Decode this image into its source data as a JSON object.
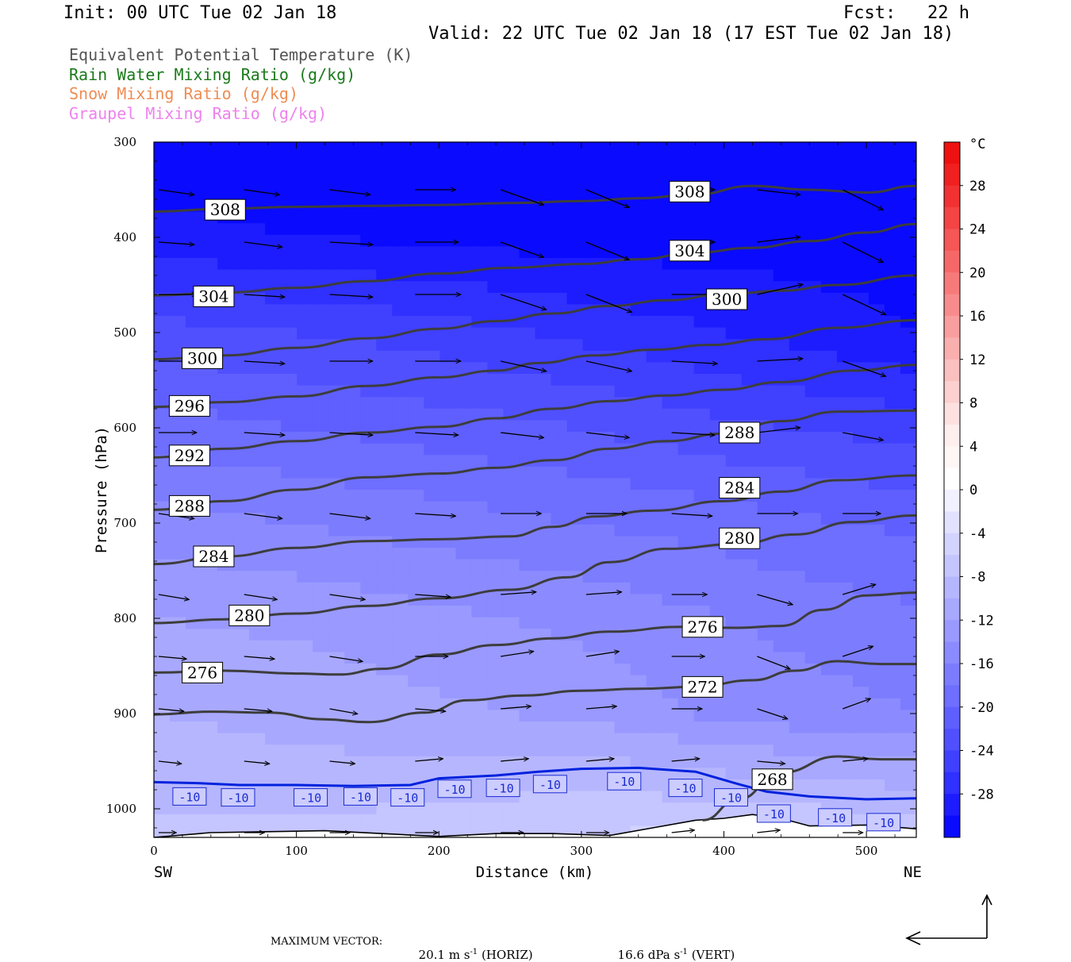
{
  "header": {
    "init": "Init: 00 UTC Tue 02 Jan 18",
    "fcst": "Fcst:   22 h",
    "valid": "Valid: 22 UTC Tue 02 Jan 18 (17 EST Tue 02 Jan 18)"
  },
  "legend": [
    {
      "label": "Equivalent Potential Temperature (K)",
      "color": "#555555"
    },
    {
      "label": "Rain Water Mixing Ratio (g/kg)",
      "color": "#1a7a1a"
    },
    {
      "label": "Snow Mixing Ratio (g/kg)",
      "color": "#ee8d55"
    },
    {
      "label": "Graupel Mixing Ratio (g/kg)",
      "color": "#ee82ee"
    }
  ],
  "footer": {
    "max_vector_label": "MAXIMUM VECTOR:",
    "horiz": "20.1 m s",
    "horiz_exp": "-1",
    "horiz_tag": "(HORIZ)",
    "vert": "16.6 dPa s",
    "vert_exp": "-1",
    "vert_tag": "(VERT)"
  },
  "chart_data": {
    "type": "cross-section",
    "xlabel": "Distance (km)",
    "ylabel": "Pressure (hPa)",
    "x_ticks": [
      0,
      100,
      200,
      300,
      400,
      500
    ],
    "xlim": [
      0,
      535
    ],
    "y_ticks": [
      300,
      400,
      500,
      600,
      700,
      800,
      900,
      1000
    ],
    "ylim": [
      300,
      1030
    ],
    "left_end_label": "SW",
    "right_end_label": "NE",
    "colorbar": {
      "unit": "°C",
      "tick_labels": [
        "28",
        "24",
        "20",
        "16",
        "12",
        "8",
        "4",
        "0",
        "-4",
        "-8",
        "-12",
        "-16",
        "-20",
        "-24",
        "-28"
      ],
      "bins": [
        {
          "lo": 30,
          "hi": 32,
          "color": "#ee1111"
        },
        {
          "lo": 28,
          "hi": 30,
          "color": "#f02020"
        },
        {
          "lo": 26,
          "hi": 28,
          "color": "#f23232"
        },
        {
          "lo": 24,
          "hi": 26,
          "color": "#f44444"
        },
        {
          "lo": 22,
          "hi": 24,
          "color": "#f55656"
        },
        {
          "lo": 20,
          "hi": 22,
          "color": "#f66868"
        },
        {
          "lo": 18,
          "hi": 20,
          "color": "#f77a7a"
        },
        {
          "lo": 16,
          "hi": 18,
          "color": "#f88c8c"
        },
        {
          "lo": 14,
          "hi": 16,
          "color": "#f99e9e"
        },
        {
          "lo": 12,
          "hi": 14,
          "color": "#faafaf"
        },
        {
          "lo": 10,
          "hi": 12,
          "color": "#fbc0c0"
        },
        {
          "lo": 8,
          "hi": 10,
          "color": "#fcd0d0"
        },
        {
          "lo": 6,
          "hi": 8,
          "color": "#fde0e0"
        },
        {
          "lo": 4,
          "hi": 6,
          "color": "#feeeee"
        },
        {
          "lo": 2,
          "hi": 4,
          "color": "#fff6f6"
        },
        {
          "lo": 0,
          "hi": 2,
          "color": "#ffffff"
        },
        {
          "lo": -2,
          "hi": 0,
          "color": "#f0f0ff"
        },
        {
          "lo": -4,
          "hi": -2,
          "color": "#e2e2ff"
        },
        {
          "lo": -6,
          "hi": -4,
          "color": "#d3d3ff"
        },
        {
          "lo": -8,
          "hi": -6,
          "color": "#c5c5ff"
        },
        {
          "lo": -10,
          "hi": -8,
          "color": "#b6b6ff"
        },
        {
          "lo": -12,
          "hi": -10,
          "color": "#a8a8ff"
        },
        {
          "lo": -14,
          "hi": -12,
          "color": "#9999ff"
        },
        {
          "lo": -16,
          "hi": -14,
          "color": "#8b8bff"
        },
        {
          "lo": -18,
          "hi": -16,
          "color": "#7c7cff"
        },
        {
          "lo": -20,
          "hi": -18,
          "color": "#6e6eff"
        },
        {
          "lo": -22,
          "hi": -20,
          "color": "#5f5fff"
        },
        {
          "lo": -24,
          "hi": -22,
          "color": "#5050ff"
        },
        {
          "lo": -26,
          "hi": -24,
          "color": "#4040ff"
        },
        {
          "lo": -28,
          "hi": -26,
          "color": "#3030ff"
        },
        {
          "lo": -30,
          "hi": -28,
          "color": "#1c1cff"
        },
        {
          "lo": -32,
          "hi": -30,
          "color": "#0a0aff"
        }
      ]
    },
    "temperature_field": {
      "x": [
        0,
        100,
        200,
        300,
        400,
        535
      ],
      "levels": [
        {
          "p": 300,
          "t": [
            -31,
            -31,
            -31,
            -31,
            -31,
            -31
          ]
        },
        {
          "p": 400,
          "t": [
            -29.5,
            -30,
            -30.5,
            -31,
            -31,
            -31
          ]
        },
        {
          "p": 500,
          "t": [
            -23,
            -24,
            -25,
            -26.5,
            -28,
            -30
          ]
        },
        {
          "p": 600,
          "t": [
            -19,
            -20,
            -21,
            -22,
            -23.5,
            -25
          ]
        },
        {
          "p": 700,
          "t": [
            -15,
            -16,
            -17,
            -18,
            -19,
            -20.5
          ]
        },
        {
          "p": 800,
          "t": [
            -12,
            -12.5,
            -13.5,
            -14.5,
            -16,
            -17.5
          ]
        },
        {
          "p": 900,
          "t": [
            -10,
            -10.5,
            -11.5,
            -12.5,
            -14.5,
            -16
          ]
        },
        {
          "p": 970,
          "t": [
            -9,
            -9.5,
            -9,
            -8.5,
            -9.5,
            -10.5
          ]
        },
        {
          "p": 1030,
          "t": [
            -7,
            -7,
            -6.5,
            -6,
            -5,
            -7
          ]
        }
      ]
    },
    "theta_e_contours": [
      {
        "value": 268,
        "x": [
          385,
          410,
          440,
          480,
          510,
          535
        ],
        "p": [
          1012,
          990,
          962,
          945,
          948,
          948
        ]
      },
      {
        "value": 272,
        "x": [
          0,
          40,
          80,
          120,
          150,
          190,
          220,
          260,
          300,
          340,
          380,
          420,
          450,
          480,
          510,
          535
        ],
        "p": [
          901,
          898,
          899,
          906,
          909,
          899,
          886,
          881,
          876,
          874,
          872,
          865,
          855,
          845,
          848,
          848
        ]
      },
      {
        "value": 276,
        "x": [
          0,
          50,
          100,
          130,
          160,
          200,
          240,
          280,
          320,
          370,
          410,
          440,
          470,
          500,
          535
        ],
        "p": [
          857,
          855,
          858,
          859,
          853,
          838,
          828,
          821,
          814,
          809,
          810,
          808,
          791,
          776,
          773
        ]
      },
      {
        "value": 280,
        "x": [
          0,
          50,
          100,
          150,
          200,
          250,
          290,
          320,
          360,
          410,
          450,
          490,
          535
        ],
        "p": [
          805,
          801,
          795,
          787,
          779,
          770,
          757,
          741,
          727,
          722,
          712,
          699,
          692
        ]
      },
      {
        "value": 284,
        "x": [
          0,
          50,
          100,
          150,
          200,
          250,
          280,
          310,
          350,
          400,
          440,
          480,
          535
        ],
        "p": [
          743,
          735,
          726,
          719,
          717,
          714,
          704,
          693,
          687,
          677,
          667,
          655,
          650
        ]
      },
      {
        "value": 288,
        "x": [
          0,
          50,
          100,
          150,
          200,
          240,
          280,
          320,
          360,
          400,
          440,
          480,
          535
        ],
        "p": [
          686,
          677,
          665,
          652,
          648,
          642,
          634,
          622,
          614,
          606,
          593,
          583,
          582
        ]
      },
      {
        "value": 292,
        "x": [
          0,
          50,
          100,
          150,
          200,
          240,
          280,
          320,
          360,
          400,
          440,
          490,
          535
        ],
        "p": [
          631,
          622,
          614,
          605,
          599,
          590,
          580,
          572,
          566,
          560,
          552,
          540,
          534
        ]
      },
      {
        "value": 296,
        "x": [
          0,
          50,
          100,
          150,
          200,
          240,
          270,
          310,
          350,
          390,
          430,
          480,
          535
        ],
        "p": [
          578,
          573,
          567,
          556,
          547,
          540,
          532,
          524,
          518,
          513,
          507,
          495,
          487
        ]
      },
      {
        "value": 300,
        "x": [
          0,
          50,
          100,
          150,
          200,
          240,
          280,
          320,
          360,
          400,
          440,
          480,
          535
        ],
        "p": [
          528,
          524,
          516,
          506,
          496,
          488,
          480,
          472,
          466,
          460,
          456,
          450,
          440
        ]
      },
      {
        "value": 304,
        "x": [
          0,
          50,
          100,
          150,
          200,
          250,
          300,
          340,
          380,
          420,
          460,
          500,
          535
        ],
        "p": [
          461,
          458,
          453,
          446,
          438,
          432,
          428,
          423,
          416,
          411,
          404,
          395,
          386
        ]
      },
      {
        "value": 308,
        "x": [
          0,
          50,
          100,
          150,
          200,
          250,
          300,
          340,
          380,
          420,
          460,
          500,
          535
        ],
        "p": [
          373,
          370,
          368,
          367,
          366,
          364,
          362,
          359,
          355,
          346,
          350,
          353,
          346
        ]
      }
    ],
    "theta_e_labels": [
      {
        "text": "308",
        "x": 50,
        "p": 371
      },
      {
        "text": "308",
        "x": 376,
        "p": 352
      },
      {
        "text": "304",
        "x": 42,
        "p": 462
      },
      {
        "text": "304",
        "x": 376,
        "p": 414
      },
      {
        "text": "300",
        "x": 34,
        "p": 527
      },
      {
        "text": "300",
        "x": 402,
        "p": 465
      },
      {
        "text": "296",
        "x": 25,
        "p": 577
      },
      {
        "text": "292",
        "x": 25,
        "p": 629
      },
      {
        "text": "288",
        "x": 25,
        "p": 682
      },
      {
        "text": "288",
        "x": 411,
        "p": 605
      },
      {
        "text": "284",
        "x": 42,
        "p": 735
      },
      {
        "text": "284",
        "x": 411,
        "p": 663
      },
      {
        "text": "280",
        "x": 67,
        "p": 797
      },
      {
        "text": "280",
        "x": 411,
        "p": 716
      },
      {
        "text": "276",
        "x": 34,
        "p": 857
      },
      {
        "text": "276",
        "x": 385,
        "p": 809
      },
      {
        "text": "272",
        "x": 385,
        "p": 872
      },
      {
        "text": "268",
        "x": 434,
        "p": 969
      }
    ],
    "isotherm": {
      "value": "-10",
      "color": "#0022dd",
      "x": [
        0,
        30,
        60,
        100,
        140,
        180,
        200,
        240,
        270,
        300,
        340,
        380,
        410,
        430,
        460,
        500,
        535
      ],
      "p": [
        972,
        973,
        975,
        975,
        976,
        975,
        968,
        965,
        961,
        958,
        957,
        961,
        974,
        982,
        987,
        990,
        989
      ],
      "labels": [
        {
          "x": 25,
          "p": 987
        },
        {
          "x": 59,
          "p": 988
        },
        {
          "x": 110,
          "p": 988
        },
        {
          "x": 145,
          "p": 987
        },
        {
          "x": 178,
          "p": 988
        },
        {
          "x": 211,
          "p": 979
        },
        {
          "x": 245,
          "p": 978
        },
        {
          "x": 278,
          "p": 974
        },
        {
          "x": 330,
          "p": 971
        },
        {
          "x": 373,
          "p": 978
        },
        {
          "x": 405,
          "p": 988
        },
        {
          "x": 435,
          "p": 1005
        },
        {
          "x": 478,
          "p": 1009
        },
        {
          "x": 512,
          "p": 1014
        }
      ]
    },
    "terrain": {
      "x": [
        0,
        40,
        80,
        120,
        160,
        200,
        240,
        280,
        320,
        350,
        380,
        400,
        420,
        440,
        460,
        500,
        535
      ],
      "p": [
        1030,
        1025,
        1024,
        1023,
        1026,
        1029,
        1026,
        1026,
        1028,
        1020,
        1012,
        1010,
        1006,
        1010,
        1018,
        1017,
        1021
      ]
    },
    "wind_vectors": {
      "x": [
        0,
        60,
        120,
        180,
        240,
        300,
        360,
        420,
        480
      ],
      "p": [
        350,
        405,
        460,
        530,
        605,
        690,
        775,
        840,
        895,
        950,
        1025
      ],
      "u": [
        [
          14,
          14,
          16,
          16,
          17,
          17,
          17,
          17,
          16
        ],
        [
          14,
          15,
          17,
          17,
          17,
          17,
          17,
          17,
          16
        ],
        [
          15,
          16,
          17,
          18,
          18,
          18,
          18,
          18,
          17
        ],
        [
          15,
          16,
          17,
          18,
          18,
          18,
          18,
          18,
          17
        ],
        [
          15,
          16,
          17,
          17,
          17,
          17,
          17,
          17,
          16
        ],
        [
          14,
          15,
          16,
          16,
          16,
          16,
          16,
          16,
          15
        ],
        [
          12,
          13,
          14,
          14,
          14,
          14,
          14,
          14,
          13
        ],
        [
          11,
          12,
          13,
          13,
          13,
          13,
          13,
          13,
          12
        ],
        [
          10,
          11,
          11,
          12,
          12,
          12,
          12,
          12,
          11
        ],
        [
          9,
          10,
          10,
          11,
          11,
          11,
          11,
          11,
          10
        ],
        [
          7,
          8,
          8,
          9,
          9,
          9,
          9,
          9,
          8
        ]
      ],
      "w": [
        [
          -2,
          -2,
          -2,
          0,
          -6,
          -7,
          0,
          -2,
          -8
        ],
        [
          -1,
          -2,
          -1,
          0,
          -6,
          -7,
          0,
          2,
          -8
        ],
        [
          0,
          -1,
          -1,
          0,
          -6,
          -7,
          0,
          4,
          -8
        ],
        [
          0,
          -1,
          0,
          0,
          -4,
          -4,
          -1,
          1,
          -6
        ],
        [
          0,
          -1,
          -1,
          -1,
          -2,
          -2,
          -1,
          2,
          -3
        ],
        [
          -2,
          -2,
          -2,
          -1,
          0,
          0,
          -1,
          0,
          0
        ],
        [
          -2,
          -2,
          -2,
          -1,
          1,
          1,
          0,
          -4,
          4
        ],
        [
          -1,
          -1,
          -2,
          0,
          2,
          2,
          0,
          -5,
          4
        ],
        [
          -1,
          -1,
          -2,
          -1,
          1,
          1,
          0,
          -4,
          4
        ],
        [
          -1,
          -1,
          -1,
          1,
          1,
          1,
          1,
          -1,
          1
        ],
        [
          0,
          0,
          0,
          0,
          0,
          0,
          1,
          1,
          0
        ]
      ]
    }
  }
}
